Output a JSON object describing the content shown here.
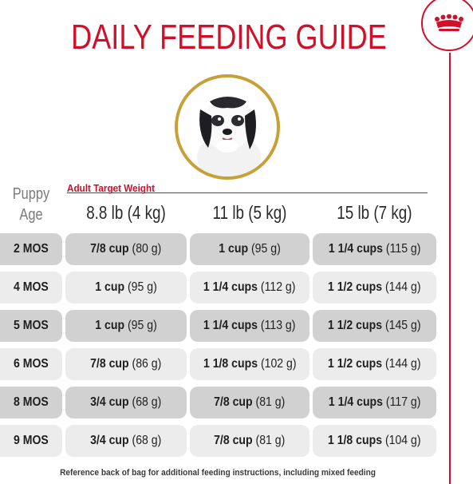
{
  "title": "DAILY FEEDING GUIDE",
  "header": {
    "age_label_line1": "Puppy",
    "age_label_line2": "Age",
    "target_weight_label": "Adult Target Weight",
    "columns": [
      "8.8 lb (4 kg)",
      "11 lb (5 kg)",
      "15 lb (7 kg)"
    ]
  },
  "rows": [
    {
      "age": "2 MOS",
      "cells": [
        {
          "cups": "7/8 cup",
          "grams": "(80 g)"
        },
        {
          "cups": "1 cup",
          "grams": "(95 g)"
        },
        {
          "cups": "1 1/4 cups",
          "grams": "(115 g)"
        }
      ]
    },
    {
      "age": "4 MOS",
      "cells": [
        {
          "cups": "1 cup",
          "grams": "(95 g)"
        },
        {
          "cups": "1 1/4 cups",
          "grams": "(112 g)"
        },
        {
          "cups": "1 1/2 cups",
          "grams": "(144 g)"
        }
      ]
    },
    {
      "age": "5 MOS",
      "cells": [
        {
          "cups": "1 cup",
          "grams": "(95 g)"
        },
        {
          "cups": "1 1/4 cups",
          "grams": "(113 g)"
        },
        {
          "cups": "1 1/2 cups",
          "grams": "(145 g)"
        }
      ]
    },
    {
      "age": "6 MOS",
      "cells": [
        {
          "cups": "7/8 cup",
          "grams": "(86 g)"
        },
        {
          "cups": "1 1/8 cups",
          "grams": "(102 g)"
        },
        {
          "cups": "1 1/2 cups",
          "grams": "(144 g)"
        }
      ]
    },
    {
      "age": "8 MOS",
      "cells": [
        {
          "cups": "3/4 cup",
          "grams": "(68 g)"
        },
        {
          "cups": "7/8 cup",
          "grams": "(81 g)"
        },
        {
          "cups": "1 1/4 cups",
          "grams": "(117 g)"
        }
      ]
    },
    {
      "age": "9 MOS",
      "cells": [
        {
          "cups": "3/4 cup",
          "grams": "(68 g)"
        },
        {
          "cups": "7/8 cup",
          "grams": "(81 g)"
        },
        {
          "cups": "1 1/8 cups",
          "grams": "(104 g)"
        }
      ]
    }
  ],
  "footnote": "Reference back of bag for additional feeding instructions, including mixed feeding",
  "icons": {
    "badge": "crown-icon",
    "photo": "puppy-photo"
  },
  "colors": {
    "brand_red": "#d0102a",
    "gold_ring": "#c7a03a",
    "row_dark": "#d1d1d1",
    "row_light": "#ececec"
  }
}
